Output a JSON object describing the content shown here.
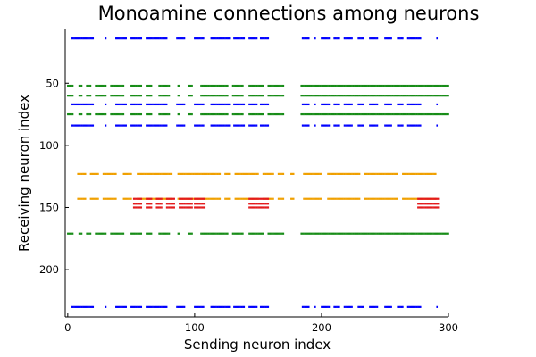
{
  "chart_data": {
    "type": "scatter",
    "title": "Monoamine connections among neurons",
    "xlabel": "Sending neuron index",
    "ylabel": "Receiving neuron index",
    "xlim": [
      -2,
      300
    ],
    "ylim": [
      238,
      6
    ],
    "y_inverted": true,
    "xticks": [
      0,
      100,
      200,
      300
    ],
    "yticks": [
      50,
      100,
      150,
      200
    ],
    "grid": false,
    "legend": "none",
    "series": [
      {
        "color": "#0000ff",
        "rows": [
          {
            "y": 14,
            "segments": [
              [
                3,
                20
              ],
              [
                30,
                30
              ],
              [
                38,
                46
              ],
              [
                50,
                58
              ],
              [
                62,
                78
              ],
              [
                86,
                92
              ],
              [
                100,
                107
              ],
              [
                113,
                128
              ],
              [
                131,
                139
              ],
              [
                143,
                149
              ],
              [
                152,
                158
              ],
              [
                185,
                190
              ],
              [
                195,
                195
              ],
              [
                200,
                206
              ],
              [
                210,
                214
              ],
              [
                218,
                224
              ],
              [
                229,
                233
              ],
              [
                238,
                244
              ],
              [
                250,
                255
              ],
              [
                260,
                264
              ],
              [
                268,
                278
              ],
              [
                291,
                291
              ]
            ]
          },
          {
            "y": 67,
            "segments": [
              [
                3,
                20
              ],
              [
                30,
                30
              ],
              [
                38,
                46
              ],
              [
                50,
                58
              ],
              [
                62,
                78
              ],
              [
                86,
                92
              ],
              [
                100,
                107
              ],
              [
                113,
                128
              ],
              [
                131,
                139
              ],
              [
                143,
                149
              ],
              [
                152,
                158
              ],
              [
                185,
                190
              ],
              [
                195,
                195
              ],
              [
                200,
                206
              ],
              [
                210,
                214
              ],
              [
                218,
                224
              ],
              [
                229,
                233
              ],
              [
                238,
                244
              ],
              [
                250,
                255
              ],
              [
                260,
                264
              ],
              [
                268,
                278
              ],
              [
                291,
                291
              ]
            ]
          },
          {
            "y": 84,
            "segments": [
              [
                3,
                20
              ],
              [
                30,
                30
              ],
              [
                38,
                46
              ],
              [
                50,
                58
              ],
              [
                62,
                78
              ],
              [
                86,
                92
              ],
              [
                100,
                107
              ],
              [
                113,
                128
              ],
              [
                131,
                139
              ],
              [
                143,
                149
              ],
              [
                152,
                158
              ],
              [
                185,
                190
              ],
              [
                195,
                195
              ],
              [
                200,
                206
              ],
              [
                210,
                214
              ],
              [
                218,
                224
              ],
              [
                229,
                233
              ],
              [
                238,
                244
              ],
              [
                250,
                255
              ],
              [
                260,
                264
              ],
              [
                268,
                278
              ],
              [
                291,
                291
              ]
            ]
          },
          {
            "y": 230,
            "segments": [
              [
                3,
                20
              ],
              [
                30,
                30
              ],
              [
                38,
                46
              ],
              [
                50,
                58
              ],
              [
                62,
                78
              ],
              [
                86,
                92
              ],
              [
                100,
                107
              ],
              [
                113,
                128
              ],
              [
                131,
                139
              ],
              [
                143,
                149
              ],
              [
                152,
                158
              ],
              [
                185,
                190
              ],
              [
                195,
                195
              ],
              [
                200,
                206
              ],
              [
                210,
                214
              ],
              [
                218,
                224
              ],
              [
                229,
                233
              ],
              [
                238,
                244
              ],
              [
                250,
                255
              ],
              [
                260,
                264
              ],
              [
                268,
                278
              ],
              [
                291,
                291
              ]
            ]
          }
        ]
      },
      {
        "color": "#178c17",
        "rows": [
          {
            "y": 52,
            "segments": [
              [
                0,
                4
              ],
              [
                9,
                11
              ],
              [
                15,
                18
              ],
              [
                22,
                30
              ],
              [
                34,
                44
              ],
              [
                50,
                58
              ],
              [
                62,
                66
              ],
              [
                72,
                80
              ],
              [
                87,
                88
              ],
              [
                95,
                98
              ],
              [
                105,
                126
              ],
              [
                130,
                138
              ],
              [
                143,
                154
              ],
              [
                158,
                170
              ],
              [
                184,
                300
              ]
            ]
          },
          {
            "y": 60,
            "segments": [
              [
                0,
                4
              ],
              [
                9,
                11
              ],
              [
                15,
                18
              ],
              [
                22,
                30
              ],
              [
                34,
                44
              ],
              [
                50,
                58
              ],
              [
                62,
                66
              ],
              [
                72,
                80
              ],
              [
                87,
                88
              ],
              [
                95,
                98
              ],
              [
                105,
                126
              ],
              [
                130,
                138
              ],
              [
                143,
                154
              ],
              [
                158,
                170
              ],
              [
                184,
                300
              ]
            ]
          },
          {
            "y": 75,
            "segments": [
              [
                0,
                4
              ],
              [
                9,
                11
              ],
              [
                15,
                18
              ],
              [
                22,
                30
              ],
              [
                34,
                44
              ],
              [
                50,
                58
              ],
              [
                62,
                66
              ],
              [
                72,
                80
              ],
              [
                87,
                88
              ],
              [
                95,
                98
              ],
              [
                105,
                126
              ],
              [
                130,
                138
              ],
              [
                143,
                154
              ],
              [
                158,
                170
              ],
              [
                184,
                300
              ]
            ]
          },
          {
            "y": 171,
            "segments": [
              [
                0,
                4
              ],
              [
                9,
                11
              ],
              [
                15,
                18
              ],
              [
                22,
                30
              ],
              [
                34,
                44
              ],
              [
                50,
                58
              ],
              [
                62,
                66
              ],
              [
                72,
                80
              ],
              [
                87,
                88
              ],
              [
                95,
                98
              ],
              [
                105,
                126
              ],
              [
                130,
                138
              ],
              [
                143,
                154
              ],
              [
                158,
                170
              ],
              [
                184,
                300
              ]
            ]
          }
        ]
      },
      {
        "color": "#f0a000",
        "rows": [
          {
            "y": 123,
            "segments": [
              [
                8,
                14
              ],
              [
                18,
                24
              ],
              [
                28,
                38
              ],
              [
                44,
                50
              ],
              [
                55,
                82
              ],
              [
                87,
                120
              ],
              [
                124,
                128
              ],
              [
                132,
                150
              ],
              [
                154,
                162
              ],
              [
                166,
                170
              ],
              [
                176,
                178
              ],
              [
                186,
                200
              ],
              [
                205,
                230
              ],
              [
                234,
                260
              ],
              [
                264,
                290
              ]
            ]
          },
          {
            "y": 143,
            "segments": [
              [
                8,
                14
              ],
              [
                18,
                24
              ],
              [
                28,
                38
              ],
              [
                44,
                50
              ],
              [
                55,
                82
              ],
              [
                87,
                120
              ],
              [
                124,
                128
              ],
              [
                132,
                150
              ],
              [
                154,
                162
              ],
              [
                166,
                170
              ],
              [
                176,
                178
              ],
              [
                186,
                200
              ],
              [
                205,
                230
              ],
              [
                234,
                260
              ],
              [
                264,
                290
              ]
            ]
          }
        ]
      },
      {
        "color": "#e31a1c",
        "rows": [
          {
            "y": 143,
            "segments": [
              [
                52,
                58
              ],
              [
                62,
                66
              ],
              [
                70,
                74
              ],
              [
                78,
                84
              ],
              [
                88,
                98
              ],
              [
                100,
                108
              ],
              [
                143,
                158
              ],
              [
                276,
                292
              ]
            ]
          },
          {
            "y": 147,
            "segments": [
              [
                52,
                58
              ],
              [
                62,
                66
              ],
              [
                70,
                74
              ],
              [
                78,
                84
              ],
              [
                88,
                98
              ],
              [
                100,
                108
              ],
              [
                143,
                158
              ],
              [
                276,
                292
              ]
            ]
          },
          {
            "y": 150,
            "segments": [
              [
                52,
                58
              ],
              [
                62,
                66
              ],
              [
                70,
                74
              ],
              [
                78,
                84
              ],
              [
                88,
                98
              ],
              [
                100,
                108
              ],
              [
                143,
                158
              ],
              [
                276,
                292
              ]
            ]
          }
        ]
      }
    ]
  }
}
